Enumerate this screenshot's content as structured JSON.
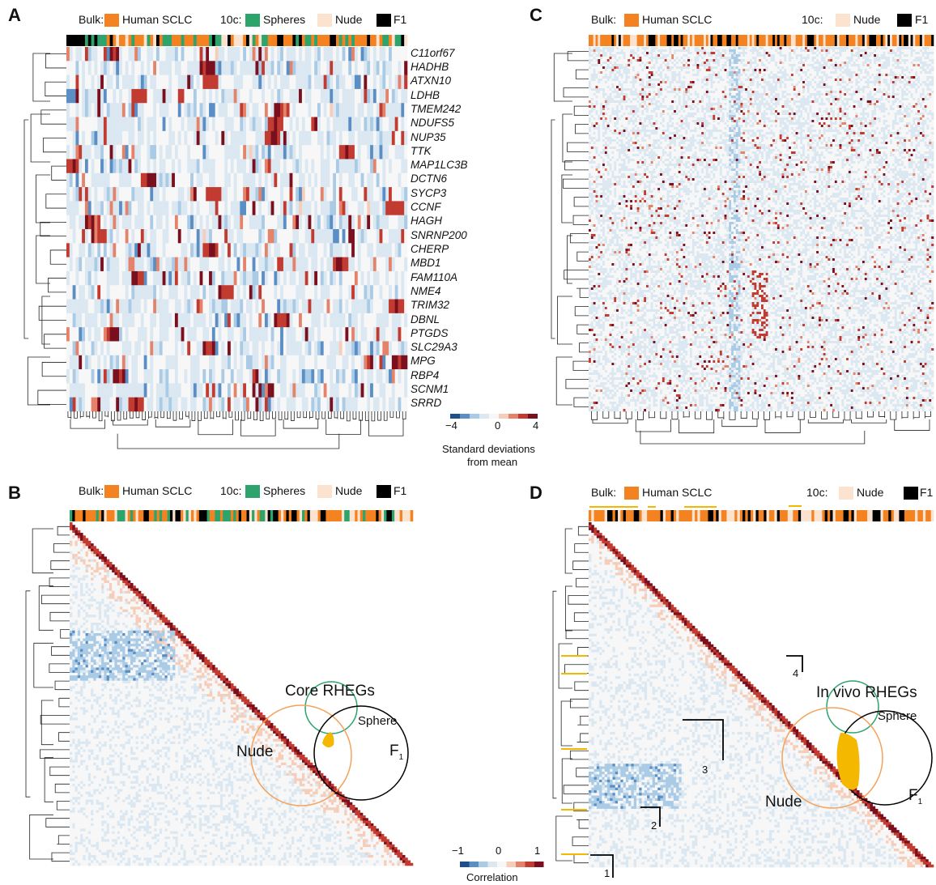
{
  "colors": {
    "human_sclc": "#f58220",
    "spheres": "#2ca46c",
    "nude": "#fbe3cf",
    "f1": "#000000",
    "highlight": "#f5b800",
    "diverging": [
      "#1f4e8c",
      "#5a8ec4",
      "#aacbe6",
      "#dbe8f2",
      "#f7f7f7",
      "#f6cdb9",
      "#e4836a",
      "#c23b31",
      "#7a0f1e"
    ]
  },
  "legend": {
    "bulk_label": "Bulk:",
    "human_sclc": "Human SCLC",
    "tenc_label": "10c:",
    "spheres": "Spheres",
    "nude": "Nude",
    "f1": "F1"
  },
  "panels": {
    "A": "A",
    "B": "B",
    "C": "C",
    "D": "D"
  },
  "colorbar_sd": {
    "ticks": [
      "−4",
      "0",
      "4"
    ],
    "title_line1": "Standard deviations",
    "title_line2": "from mean"
  },
  "colorbar_corr": {
    "ticks": [
      "−1",
      "0",
      "1"
    ],
    "title": "Correlation"
  },
  "venn_core": {
    "title": "Core RHEGs",
    "sphere": "Sphere",
    "nude": "Nude",
    "f1": "F",
    "f1_sub": "1"
  },
  "venn_invivo": {
    "title": "In vivo RHEGs",
    "sphere": "Sphere",
    "nude": "Nude",
    "f1": "F",
    "f1_sub": "1"
  },
  "chart_data": [
    {
      "panel": "A",
      "type": "heatmap",
      "rows": [
        "C11orf67",
        "HADHB",
        "ATXN10",
        "LDHB",
        "TMEM242",
        "NDUFS5",
        "NUP35",
        "TTK",
        "MAP1LC3B",
        "DCTN6",
        "SYCP3",
        "CCNF",
        "HAGH",
        "SNRNP200",
        "CHERP",
        "MBD1",
        "FAM110A",
        "NME4",
        "TRIM32",
        "DBNL",
        "PTGDS",
        "SLC29A3",
        "MPG",
        "RBP4",
        "SCNM1",
        "SRRD"
      ],
      "column_annotation": [
        "Human SCLC",
        "Spheres",
        "Nude",
        "F1"
      ],
      "color_scale": [
        -4,
        4
      ],
      "dendrograms": [
        "rows",
        "columns"
      ]
    },
    {
      "panel": "B",
      "type": "heatmap",
      "form": "lower-triangle correlation matrix",
      "column_annotation": [
        "Human SCLC",
        "Spheres",
        "Nude",
        "F1"
      ],
      "color_scale": [
        -1,
        1
      ],
      "dendrograms": [
        "rows"
      ]
    },
    {
      "panel": "C",
      "type": "heatmap",
      "column_annotation": [
        "Human SCLC",
        "Nude",
        "F1"
      ],
      "color_scale": [
        -4,
        4
      ],
      "dendrograms": [
        "rows",
        "columns"
      ]
    },
    {
      "panel": "D",
      "type": "heatmap",
      "form": "lower-triangle correlation matrix",
      "column_annotation": [
        "Human SCLC",
        "Nude",
        "F1"
      ],
      "color_scale": [
        -1,
        1
      ],
      "dendrograms": [
        "rows"
      ],
      "modules": [
        "1",
        "2",
        "3",
        "4"
      ]
    }
  ]
}
